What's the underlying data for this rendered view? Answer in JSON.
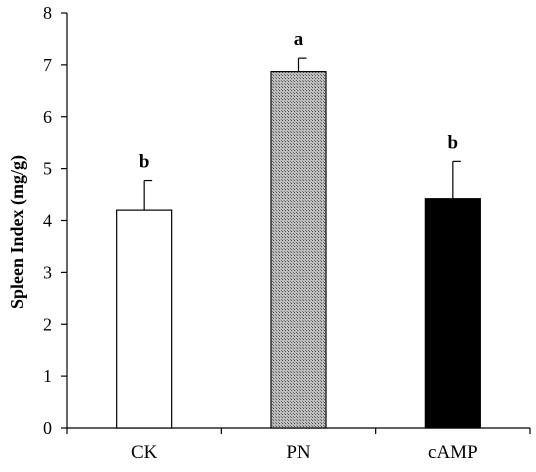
{
  "chart_data": {
    "type": "bar",
    "title": "",
    "xlabel": "",
    "ylabel": "Spleen Index (mg/g)",
    "ylim": [
      0,
      8
    ],
    "yticks": [
      0,
      1,
      2,
      3,
      4,
      5,
      6,
      7,
      8
    ],
    "categories": [
      "CK",
      "PN",
      "cAMP"
    ],
    "values": [
      4.2,
      6.87,
      4.42
    ],
    "error_plus": [
      0.57,
      0.26,
      0.72
    ],
    "significance": [
      "b",
      "a",
      "b"
    ],
    "bar_styles": [
      {
        "fill": "#ffffff",
        "pattern": "none"
      },
      {
        "fill": "#a9a9a9",
        "pattern": "crosshatch"
      },
      {
        "fill": "#000000",
        "pattern": "none"
      }
    ],
    "grid": false,
    "legend": "none"
  }
}
